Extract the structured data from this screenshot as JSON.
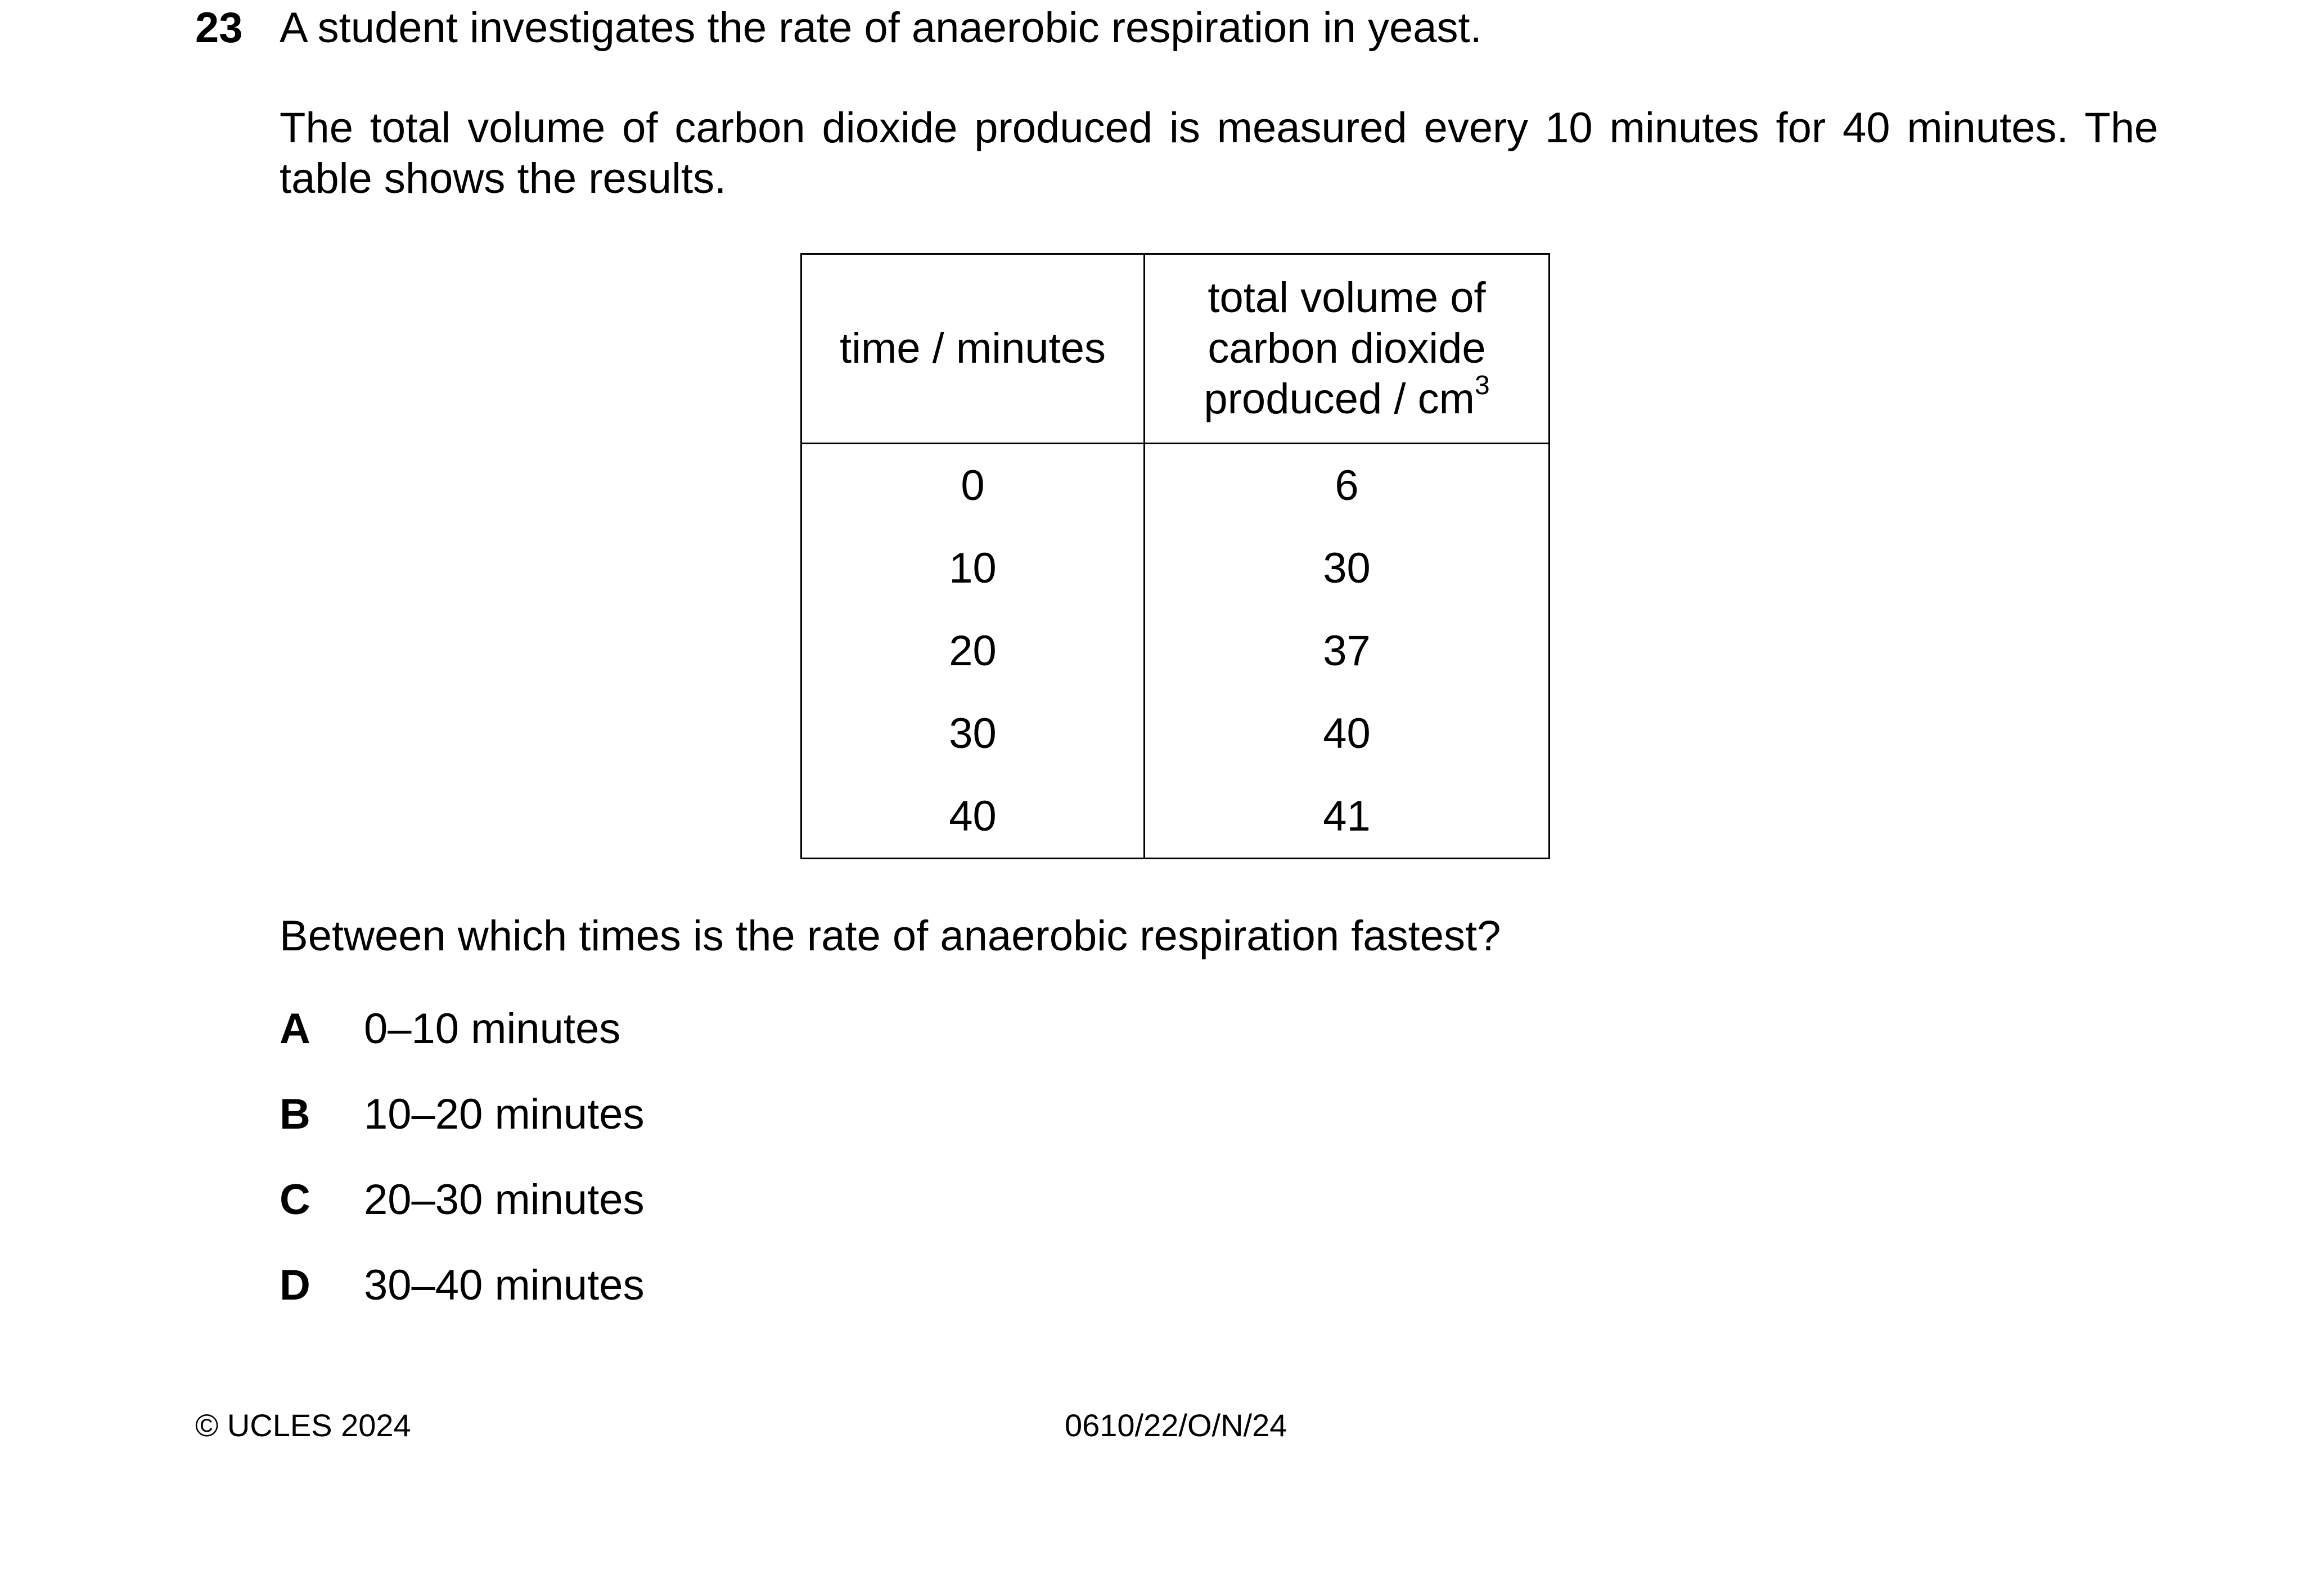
{
  "question": {
    "number": "23",
    "stem": "A student investigates the rate of anaerobic respiration in yeast.",
    "paragraph": "The total volume of carbon dioxide produced is measured every 10 minutes for 40 minutes. The table shows the results.",
    "prompt": "Between which times is the rate of anaerobic respiration fastest?"
  },
  "table": {
    "headers": {
      "time": "time / minutes",
      "volume_line1": "total volume of",
      "volume_line2": "carbon dioxide",
      "volume_line3": "produced / cm",
      "volume_unit_sup": "3"
    },
    "rows": [
      {
        "time": "0",
        "volume": "6"
      },
      {
        "time": "10",
        "volume": "30"
      },
      {
        "time": "20",
        "volume": "37"
      },
      {
        "time": "30",
        "volume": "40"
      },
      {
        "time": "40",
        "volume": "41"
      }
    ]
  },
  "options": [
    {
      "letter": "A",
      "text": "0–10 minutes"
    },
    {
      "letter": "B",
      "text": "10–20 minutes"
    },
    {
      "letter": "C",
      "text": "20–30 minutes"
    },
    {
      "letter": "D",
      "text": "30–40 minutes"
    }
  ],
  "footer": {
    "copyright": "© UCLES 2024",
    "code": "0610/22/O/N/24"
  }
}
